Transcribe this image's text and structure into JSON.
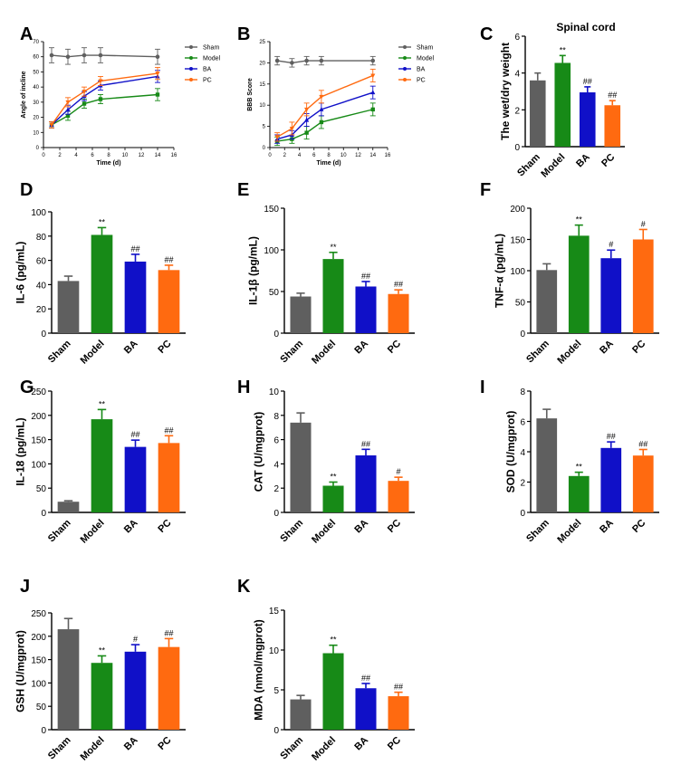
{
  "figure": {
    "panel_labels": [
      "A",
      "B",
      "C",
      "D",
      "E",
      "F",
      "G",
      "H",
      "I",
      "J",
      "K"
    ]
  },
  "colors": {
    "Sham": "#5f5f5f",
    "Model": "#178a17",
    "BA": "#1010c8",
    "PC": "#ff6a10"
  },
  "chart_data": [
    {
      "panel": "A",
      "type": "line",
      "title": "",
      "xlabel": "Time (d)",
      "ylabel": "Angle of incline",
      "xlim": [
        0,
        16
      ],
      "ylim": [
        0,
        70
      ],
      "xticks": [
        0,
        2,
        4,
        6,
        8,
        10,
        12,
        14,
        16
      ],
      "yticks": [
        0,
        10,
        20,
        30,
        40,
        50,
        60,
        70
      ],
      "x": [
        1,
        3,
        5,
        7,
        14
      ],
      "legend_position": "right",
      "series": [
        {
          "name": "Sham",
          "values": [
            61,
            60,
            61,
            61,
            60
          ],
          "error": [
            5,
            5,
            5,
            5,
            5
          ]
        },
        {
          "name": "Model",
          "values": [
            15,
            21,
            29,
            32,
            35
          ],
          "error": [
            2,
            3,
            3,
            3,
            4
          ]
        },
        {
          "name": "BA",
          "values": [
            15,
            25,
            34,
            41,
            47
          ],
          "error": [
            2,
            3,
            3,
            3,
            4
          ]
        },
        {
          "name": "PC",
          "values": [
            15,
            30,
            37,
            44,
            49
          ],
          "error": [
            2,
            3,
            3,
            3,
            4
          ]
        }
      ]
    },
    {
      "panel": "B",
      "type": "line",
      "title": "",
      "xlabel": "Time (d)",
      "ylabel": "BBB Score",
      "xlim": [
        0,
        16
      ],
      "ylim": [
        0,
        25
      ],
      "xticks": [
        0,
        2,
        4,
        6,
        8,
        10,
        12,
        14,
        16
      ],
      "yticks": [
        0,
        5,
        10,
        15,
        20,
        25
      ],
      "x": [
        1,
        3,
        5,
        7,
        14
      ],
      "legend_position": "right",
      "series": [
        {
          "name": "Sham",
          "values": [
            20.5,
            20,
            20.5,
            20.5,
            20.5
          ],
          "error": [
            1,
            1,
            1,
            1,
            1
          ]
        },
        {
          "name": "Model",
          "values": [
            1.5,
            2,
            3.5,
            6,
            9
          ],
          "error": [
            1,
            1,
            1.5,
            1.5,
            1.5
          ]
        },
        {
          "name": "BA",
          "values": [
            2,
            3,
            6.5,
            9,
            13
          ],
          "error": [
            1,
            1,
            1.5,
            1.5,
            1.5
          ]
        },
        {
          "name": "PC",
          "values": [
            2.5,
            4.5,
            9,
            12,
            17
          ],
          "error": [
            1,
            1.5,
            1.5,
            1.5,
            1.5
          ]
        }
      ]
    },
    {
      "panel": "C",
      "type": "bar",
      "title": "Spinal cord",
      "ylabel": "The wet/dry weight",
      "categories": [
        "Sham",
        "Model",
        "BA",
        "PC"
      ],
      "values": [
        3.6,
        4.55,
        2.95,
        2.25
      ],
      "error": [
        0.4,
        0.4,
        0.3,
        0.25
      ],
      "significance": [
        "",
        "**",
        "##",
        "##"
      ],
      "ylim": [
        0,
        6
      ],
      "yticks": [
        0,
        2,
        4,
        6
      ]
    },
    {
      "panel": "D",
      "type": "bar",
      "title": "",
      "ylabel": "IL-6 (pg/mL)",
      "categories": [
        "Sham",
        "Model",
        "BA",
        "PC"
      ],
      "values": [
        43,
        81,
        59,
        52
      ],
      "error": [
        4,
        6,
        6,
        4
      ],
      "significance": [
        "",
        "**",
        "##",
        "##"
      ],
      "ylim": [
        0,
        100
      ],
      "yticks": [
        0,
        20,
        40,
        60,
        80,
        100
      ]
    },
    {
      "panel": "E",
      "type": "bar",
      "title": "",
      "ylabel": "IL-1β (pg/mL)",
      "categories": [
        "Sham",
        "Model",
        "BA",
        "PC"
      ],
      "values": [
        44,
        89,
        56,
        47
      ],
      "error": [
        4,
        8,
        6,
        5
      ],
      "significance": [
        "",
        "**",
        "##",
        "##"
      ],
      "ylim": [
        0,
        150
      ],
      "yticks": [
        0,
        50,
        100,
        150
      ]
    },
    {
      "panel": "F",
      "type": "bar",
      "title": "",
      "ylabel": "TNF-α (pg/mL)",
      "categories": [
        "Sham",
        "Model",
        "BA",
        "PC"
      ],
      "values": [
        101,
        156,
        120,
        150
      ],
      "error": [
        10,
        17,
        13,
        16
      ],
      "significance": [
        "",
        "**",
        "#",
        "#"
      ],
      "ylim": [
        0,
        200
      ],
      "yticks": [
        0,
        50,
        100,
        150,
        200
      ]
    },
    {
      "panel": "G",
      "type": "bar",
      "title": "",
      "ylabel": "IL-18 (pg/mL)",
      "categories": [
        "Sham",
        "Model",
        "BA",
        "PC"
      ],
      "values": [
        22,
        192,
        135,
        143
      ],
      "error": [
        2,
        20,
        14,
        15
      ],
      "significance": [
        "",
        "**",
        "##",
        "##"
      ],
      "ylim": [
        0,
        250
      ],
      "yticks": [
        0,
        50,
        100,
        150,
        200,
        250
      ]
    },
    {
      "panel": "H",
      "type": "bar",
      "title": "",
      "ylabel": "CAT (U/mgprot)",
      "categories": [
        "Sham",
        "Model",
        "BA",
        "PC"
      ],
      "values": [
        7.4,
        2.2,
        4.7,
        2.6
      ],
      "error": [
        0.8,
        0.3,
        0.5,
        0.3
      ],
      "significance": [
        "",
        "**",
        "##",
        "#"
      ],
      "ylim": [
        0,
        10
      ],
      "yticks": [
        0,
        2,
        4,
        6,
        8,
        10
      ]
    },
    {
      "panel": "I",
      "type": "bar",
      "title": "",
      "ylabel": "SOD (U/mgprot)",
      "categories": [
        "Sham",
        "Model",
        "BA",
        "PC"
      ],
      "values": [
        6.2,
        2.4,
        4.25,
        3.75
      ],
      "error": [
        0.6,
        0.25,
        0.4,
        0.4
      ],
      "significance": [
        "",
        "**",
        "##",
        "##"
      ],
      "ylim": [
        0,
        8
      ],
      "yticks": [
        0,
        2,
        4,
        6,
        8
      ]
    },
    {
      "panel": "J",
      "type": "bar",
      "title": "",
      "ylabel": "GSH (U/mgprot)",
      "categories": [
        "Sham",
        "Model",
        "BA",
        "PC"
      ],
      "values": [
        215,
        143,
        167,
        177
      ],
      "error": [
        23,
        15,
        15,
        18
      ],
      "significance": [
        "",
        "**",
        "#",
        "##"
      ],
      "ylim": [
        0,
        250
      ],
      "yticks": [
        0,
        50,
        100,
        150,
        200,
        250
      ]
    },
    {
      "panel": "K",
      "type": "bar",
      "title": "",
      "ylabel": "MDA (nmol/mgprot)",
      "categories": [
        "Sham",
        "Model",
        "BA",
        "PC"
      ],
      "values": [
        3.8,
        9.6,
        5.2,
        4.2
      ],
      "error": [
        0.5,
        1.0,
        0.6,
        0.5
      ],
      "significance": [
        "",
        "**",
        "##",
        "##"
      ],
      "ylim": [
        0,
        15
      ],
      "yticks": [
        0,
        5,
        10,
        15
      ]
    }
  ]
}
